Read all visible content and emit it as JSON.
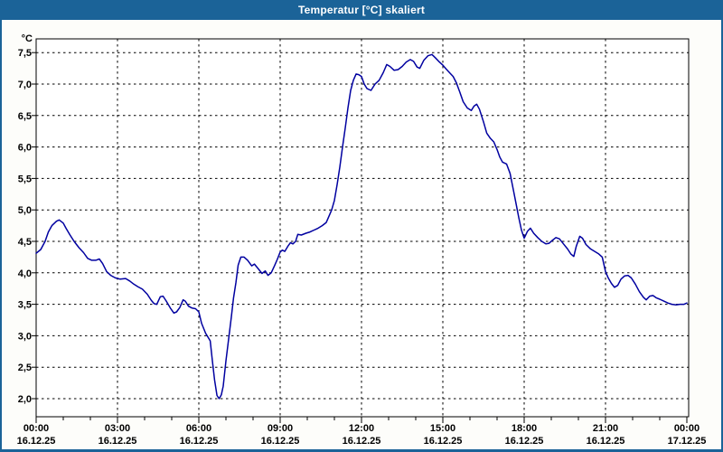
{
  "window": {
    "title": "Temperatur [°C] skaliert"
  },
  "chart": {
    "unit_label": "°C",
    "colors": {
      "titlebar": "#1B6398",
      "window_border": "#1B6398",
      "content_bg": "#FDFDFA",
      "plot_bg": "#FFFFFF",
      "grid": "#000000",
      "axis": "#000000",
      "text": "#000000",
      "line": "#0000A0",
      "title_text": "#FFFFFF"
    }
  },
  "chart_data": {
    "type": "line",
    "title": "Temperatur [°C] skaliert",
    "xlabel": "",
    "ylabel": "°C",
    "xlim": [
      0,
      24
    ],
    "ylim": [
      1.7,
      7.72
    ],
    "grid": true,
    "legend": false,
    "y_ticks": [
      {
        "v": 2.0,
        "label": "2,0"
      },
      {
        "v": 2.5,
        "label": "2,5"
      },
      {
        "v": 3.0,
        "label": "3,0"
      },
      {
        "v": 3.5,
        "label": "3,5"
      },
      {
        "v": 4.0,
        "label": "4,0"
      },
      {
        "v": 4.5,
        "label": "4,5"
      },
      {
        "v": 5.0,
        "label": "5,0"
      },
      {
        "v": 5.5,
        "label": "5,5"
      },
      {
        "v": 6.0,
        "label": "6,0"
      },
      {
        "v": 6.5,
        "label": "6,5"
      },
      {
        "v": 7.0,
        "label": "7,0"
      },
      {
        "v": 7.5,
        "label": "7,5"
      }
    ],
    "x_ticks": [
      {
        "h": 0,
        "time": "00:00",
        "date": "16.12.25"
      },
      {
        "h": 3,
        "time": "03:00",
        "date": "16.12.25"
      },
      {
        "h": 6,
        "time": "06:00",
        "date": "16.12.25"
      },
      {
        "h": 9,
        "time": "09:00",
        "date": "16.12.25"
      },
      {
        "h": 12,
        "time": "12:00",
        "date": "16.12.25"
      },
      {
        "h": 15,
        "time": "15:00",
        "date": "16.12.25"
      },
      {
        "h": 18,
        "time": "18:00",
        "date": "16.12.25"
      },
      {
        "h": 21,
        "time": "21:00",
        "date": "16.12.25"
      },
      {
        "h": 24,
        "time": "00:00",
        "date": "17.12.25"
      }
    ],
    "series": [
      {
        "name": "Temperatur",
        "color": "#0000A0",
        "points": [
          [
            0,
            4.31
          ],
          [
            0.17,
            4.37
          ],
          [
            0.33,
            4.5
          ],
          [
            0.45,
            4.65
          ],
          [
            0.58,
            4.75
          ],
          [
            0.75,
            4.82
          ],
          [
            0.85,
            4.84
          ],
          [
            1.0,
            4.79
          ],
          [
            1.1,
            4.71
          ],
          [
            1.25,
            4.6
          ],
          [
            1.4,
            4.5
          ],
          [
            1.58,
            4.4
          ],
          [
            1.75,
            4.32
          ],
          [
            1.9,
            4.23
          ],
          [
            2.05,
            4.2
          ],
          [
            2.2,
            4.2
          ],
          [
            2.33,
            4.22
          ],
          [
            2.45,
            4.15
          ],
          [
            2.6,
            4.02
          ],
          [
            2.75,
            3.96
          ],
          [
            2.92,
            3.92
          ],
          [
            3.1,
            3.9
          ],
          [
            3.3,
            3.91
          ],
          [
            3.45,
            3.87
          ],
          [
            3.6,
            3.82
          ],
          [
            3.75,
            3.78
          ],
          [
            3.92,
            3.74
          ],
          [
            4.1,
            3.66
          ],
          [
            4.25,
            3.56
          ],
          [
            4.35,
            3.51
          ],
          [
            4.45,
            3.5
          ],
          [
            4.58,
            3.62
          ],
          [
            4.68,
            3.63
          ],
          [
            4.8,
            3.55
          ],
          [
            4.95,
            3.44
          ],
          [
            5.08,
            3.36
          ],
          [
            5.18,
            3.38
          ],
          [
            5.3,
            3.45
          ],
          [
            5.42,
            3.57
          ],
          [
            5.5,
            3.55
          ],
          [
            5.62,
            3.47
          ],
          [
            5.75,
            3.44
          ],
          [
            5.88,
            3.43
          ],
          [
            6.0,
            3.38
          ],
          [
            6.1,
            3.2
          ],
          [
            6.25,
            3.04
          ],
          [
            6.42,
            2.92
          ],
          [
            6.5,
            2.6
          ],
          [
            6.58,
            2.3
          ],
          [
            6.67,
            2.05
          ],
          [
            6.75,
            2.0
          ],
          [
            6.83,
            2.06
          ],
          [
            6.9,
            2.2
          ],
          [
            7.0,
            2.6
          ],
          [
            7.1,
            2.95
          ],
          [
            7.2,
            3.3
          ],
          [
            7.28,
            3.6
          ],
          [
            7.37,
            3.85
          ],
          [
            7.45,
            4.12
          ],
          [
            7.55,
            4.25
          ],
          [
            7.67,
            4.25
          ],
          [
            7.8,
            4.2
          ],
          [
            7.95,
            4.11
          ],
          [
            8.05,
            4.14
          ],
          [
            8.2,
            4.06
          ],
          [
            8.33,
            3.99
          ],
          [
            8.45,
            4.03
          ],
          [
            8.55,
            3.96
          ],
          [
            8.67,
            4.0
          ],
          [
            8.8,
            4.12
          ],
          [
            8.9,
            4.22
          ],
          [
            9.0,
            4.33
          ],
          [
            9.08,
            4.36
          ],
          [
            9.17,
            4.34
          ],
          [
            9.28,
            4.42
          ],
          [
            9.38,
            4.48
          ],
          [
            9.47,
            4.46
          ],
          [
            9.57,
            4.5
          ],
          [
            9.65,
            4.61
          ],
          [
            9.78,
            4.6
          ],
          [
            9.95,
            4.63
          ],
          [
            10.1,
            4.65
          ],
          [
            10.25,
            4.68
          ],
          [
            10.4,
            4.71
          ],
          [
            10.55,
            4.75
          ],
          [
            10.7,
            4.8
          ],
          [
            10.8,
            4.9
          ],
          [
            10.9,
            5.0
          ],
          [
            11.0,
            5.15
          ],
          [
            11.1,
            5.4
          ],
          [
            11.2,
            5.68
          ],
          [
            11.3,
            6.0
          ],
          [
            11.4,
            6.3
          ],
          [
            11.5,
            6.62
          ],
          [
            11.6,
            6.9
          ],
          [
            11.7,
            7.06
          ],
          [
            11.8,
            7.16
          ],
          [
            11.9,
            7.15
          ],
          [
            12.0,
            7.12
          ],
          [
            12.1,
            7.0
          ],
          [
            12.2,
            6.93
          ],
          [
            12.35,
            6.9
          ],
          [
            12.5,
            7.0
          ],
          [
            12.65,
            7.06
          ],
          [
            12.8,
            7.18
          ],
          [
            12.93,
            7.31
          ],
          [
            13.05,
            7.28
          ],
          [
            13.2,
            7.22
          ],
          [
            13.35,
            7.23
          ],
          [
            13.5,
            7.28
          ],
          [
            13.65,
            7.35
          ],
          [
            13.8,
            7.39
          ],
          [
            13.92,
            7.36
          ],
          [
            14.05,
            7.27
          ],
          [
            14.15,
            7.25
          ],
          [
            14.3,
            7.38
          ],
          [
            14.45,
            7.45
          ],
          [
            14.6,
            7.47
          ],
          [
            14.72,
            7.42
          ],
          [
            14.85,
            7.36
          ],
          [
            15.0,
            7.3
          ],
          [
            15.12,
            7.24
          ],
          [
            15.25,
            7.18
          ],
          [
            15.38,
            7.12
          ],
          [
            15.5,
            7.02
          ],
          [
            15.62,
            6.88
          ],
          [
            15.75,
            6.72
          ],
          [
            15.9,
            6.62
          ],
          [
            16.05,
            6.58
          ],
          [
            16.15,
            6.65
          ],
          [
            16.25,
            6.68
          ],
          [
            16.35,
            6.6
          ],
          [
            16.5,
            6.4
          ],
          [
            16.62,
            6.22
          ],
          [
            16.75,
            6.14
          ],
          [
            16.88,
            6.08
          ],
          [
            17.0,
            5.96
          ],
          [
            17.1,
            5.84
          ],
          [
            17.2,
            5.76
          ],
          [
            17.35,
            5.73
          ],
          [
            17.48,
            5.58
          ],
          [
            17.6,
            5.32
          ],
          [
            17.7,
            5.1
          ],
          [
            17.8,
            4.88
          ],
          [
            17.9,
            4.68
          ],
          [
            18.0,
            4.55
          ],
          [
            18.12,
            4.66
          ],
          [
            18.23,
            4.71
          ],
          [
            18.35,
            4.63
          ],
          [
            18.5,
            4.56
          ],
          [
            18.65,
            4.5
          ],
          [
            18.8,
            4.46
          ],
          [
            18.92,
            4.47
          ],
          [
            19.05,
            4.52
          ],
          [
            19.17,
            4.56
          ],
          [
            19.3,
            4.54
          ],
          [
            19.45,
            4.46
          ],
          [
            19.6,
            4.38
          ],
          [
            19.72,
            4.3
          ],
          [
            19.83,
            4.26
          ],
          [
            19.92,
            4.42
          ],
          [
            20.05,
            4.58
          ],
          [
            20.15,
            4.55
          ],
          [
            20.28,
            4.45
          ],
          [
            20.45,
            4.38
          ],
          [
            20.6,
            4.34
          ],
          [
            20.75,
            4.3
          ],
          [
            20.88,
            4.25
          ],
          [
            21.0,
            4.02
          ],
          [
            21.1,
            3.92
          ],
          [
            21.22,
            3.83
          ],
          [
            21.33,
            3.77
          ],
          [
            21.45,
            3.8
          ],
          [
            21.57,
            3.9
          ],
          [
            21.7,
            3.95
          ],
          [
            21.83,
            3.96
          ],
          [
            21.95,
            3.92
          ],
          [
            22.1,
            3.82
          ],
          [
            22.25,
            3.7
          ],
          [
            22.4,
            3.61
          ],
          [
            22.5,
            3.57
          ],
          [
            22.63,
            3.63
          ],
          [
            22.75,
            3.64
          ],
          [
            22.88,
            3.6
          ],
          [
            23.0,
            3.58
          ],
          [
            23.15,
            3.55
          ],
          [
            23.3,
            3.52
          ],
          [
            23.45,
            3.5
          ],
          [
            23.6,
            3.49
          ],
          [
            23.75,
            3.5
          ],
          [
            23.9,
            3.5
          ],
          [
            24.0,
            3.52
          ]
        ]
      }
    ]
  }
}
